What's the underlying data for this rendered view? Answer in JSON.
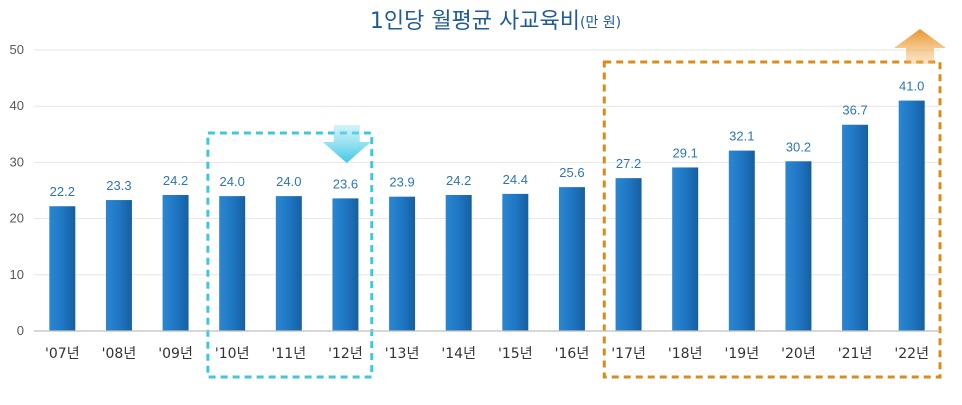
{
  "chart_data": {
    "type": "bar",
    "title": "1인당 월평균 사교육비",
    "title_unit": "(만 원)",
    "xlabel": "",
    "ylabel": "",
    "categories": [
      "'07년",
      "'08년",
      "'09년",
      "'10년",
      "'11년",
      "'12년",
      "'13년",
      "'14년",
      "'15년",
      "'16년",
      "'17년",
      "'18년",
      "'19년",
      "'20년",
      "'21년",
      "'22년"
    ],
    "values": [
      22.2,
      23.3,
      24.2,
      24.0,
      24.0,
      23.6,
      23.9,
      24.2,
      24.4,
      25.6,
      27.2,
      29.1,
      32.1,
      30.2,
      36.7,
      41.0
    ],
    "value_labels": [
      "22.2",
      "23.3",
      "24.2",
      "24.0",
      "24.0",
      "23.6",
      "23.9",
      "24.2",
      "24.4",
      "25.6",
      "27.2",
      "29.1",
      "32.1",
      "30.2",
      "36.7",
      "41.0"
    ],
    "ylim": [
      0,
      50
    ],
    "yticks": [
      0,
      10,
      20,
      30,
      40,
      50
    ],
    "grid": true,
    "bar_color": "#1f77c4",
    "highlights": [
      {
        "name": "decline-period",
        "start": "'10년",
        "end": "'12년",
        "color": "#3fc8dc",
        "arrow": "down"
      },
      {
        "name": "growth-period",
        "start": "'17년",
        "end": "'22년",
        "color": "#d98c1a",
        "arrow": "up"
      }
    ]
  }
}
